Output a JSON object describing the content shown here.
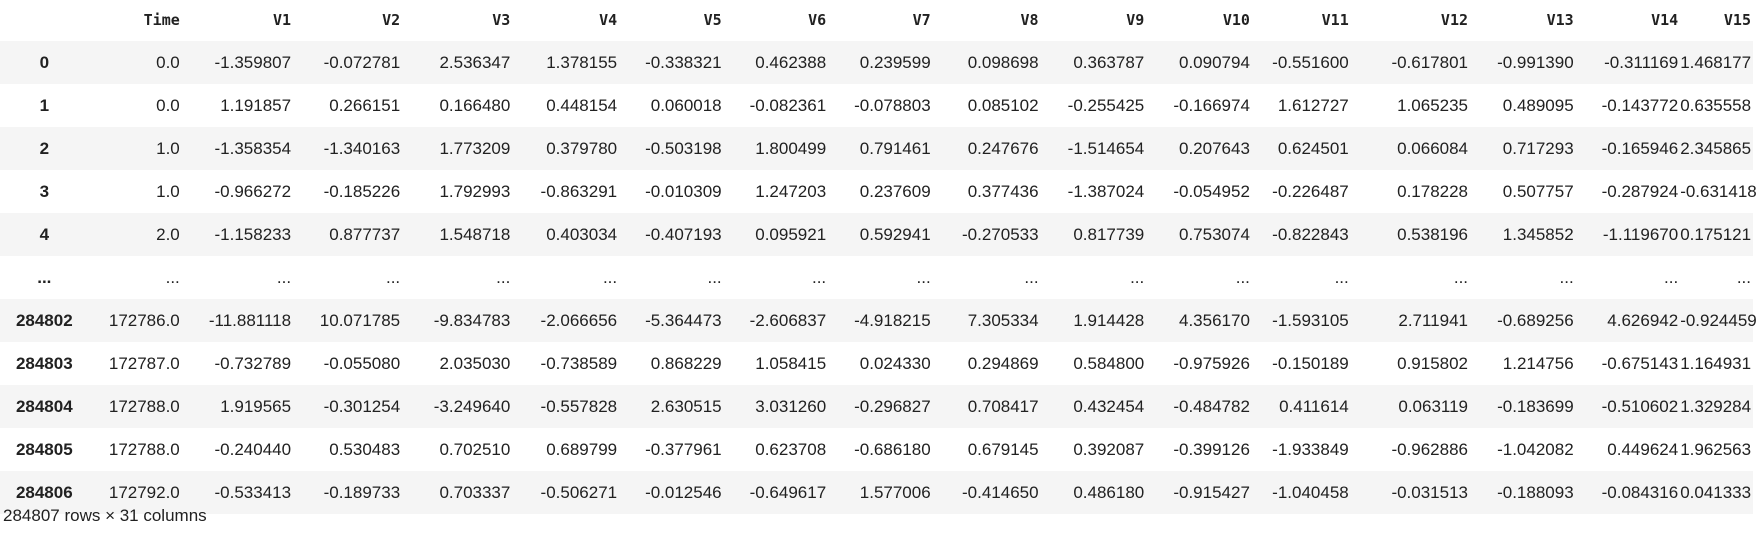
{
  "dataframe": {
    "columns": [
      "Time",
      "V1",
      "V2",
      "V3",
      "V4",
      "V5",
      "V6",
      "V7",
      "V8",
      "V9",
      "V10",
      "V11",
      "V12",
      "V13",
      "V14",
      "V15"
    ],
    "rows": [
      {
        "index": "0",
        "cells": [
          "0.0",
          "-1.359807",
          "-0.072781",
          "2.536347",
          "1.378155",
          "-0.338321",
          "0.462388",
          "0.239599",
          "0.098698",
          "0.363787",
          "0.090794",
          "-0.551600",
          "-0.617801",
          "-0.991390",
          "-0.311169",
          "1.468177"
        ]
      },
      {
        "index": "1",
        "cells": [
          "0.0",
          "1.191857",
          "0.266151",
          "0.166480",
          "0.448154",
          "0.060018",
          "-0.082361",
          "-0.078803",
          "0.085102",
          "-0.255425",
          "-0.166974",
          "1.612727",
          "1.065235",
          "0.489095",
          "-0.143772",
          "0.635558"
        ]
      },
      {
        "index": "2",
        "cells": [
          "1.0",
          "-1.358354",
          "-1.340163",
          "1.773209",
          "0.379780",
          "-0.503198",
          "1.800499",
          "0.791461",
          "0.247676",
          "-1.514654",
          "0.207643",
          "0.624501",
          "0.066084",
          "0.717293",
          "-0.165946",
          "2.345865"
        ]
      },
      {
        "index": "3",
        "cells": [
          "1.0",
          "-0.966272",
          "-0.185226",
          "1.792993",
          "-0.863291",
          "-0.010309",
          "1.247203",
          "0.237609",
          "0.377436",
          "-1.387024",
          "-0.054952",
          "-0.226487",
          "0.178228",
          "0.507757",
          "-0.287924",
          "-0.631418"
        ]
      },
      {
        "index": "4",
        "cells": [
          "2.0",
          "-1.158233",
          "0.877737",
          "1.548718",
          "0.403034",
          "-0.407193",
          "0.095921",
          "0.592941",
          "-0.270533",
          "0.817739",
          "0.753074",
          "-0.822843",
          "0.538196",
          "1.345852",
          "-1.119670",
          "0.175121"
        ]
      },
      {
        "index": "...",
        "cells": [
          "...",
          "...",
          "...",
          "...",
          "...",
          "...",
          "...",
          "...",
          "...",
          "...",
          "...",
          "...",
          "...",
          "...",
          "...",
          "..."
        ]
      },
      {
        "index": "284802",
        "cells": [
          "172786.0",
          "-11.881118",
          "10.071785",
          "-9.834783",
          "-2.066656",
          "-5.364473",
          "-2.606837",
          "-4.918215",
          "7.305334",
          "1.914428",
          "4.356170",
          "-1.593105",
          "2.711941",
          "-0.689256",
          "4.626942",
          "-0.924459"
        ]
      },
      {
        "index": "284803",
        "cells": [
          "172787.0",
          "-0.732789",
          "-0.055080",
          "2.035030",
          "-0.738589",
          "0.868229",
          "1.058415",
          "0.024330",
          "0.294869",
          "0.584800",
          "-0.975926",
          "-0.150189",
          "0.915802",
          "1.214756",
          "-0.675143",
          "1.164931"
        ]
      },
      {
        "index": "284804",
        "cells": [
          "172788.0",
          "1.919565",
          "-0.301254",
          "-3.249640",
          "-0.557828",
          "2.630515",
          "3.031260",
          "-0.296827",
          "0.708417",
          "0.432454",
          "-0.484782",
          "0.411614",
          "0.063119",
          "-0.183699",
          "-0.510602",
          "1.329284"
        ]
      },
      {
        "index": "284805",
        "cells": [
          "172788.0",
          "-0.240440",
          "0.530483",
          "0.702510",
          "0.689799",
          "-0.377961",
          "0.623708",
          "-0.686180",
          "0.679145",
          "0.392087",
          "-0.399126",
          "-1.933849",
          "-0.962886",
          "-1.042082",
          "0.449624",
          "1.962563"
        ]
      },
      {
        "index": "284806",
        "cells": [
          "172792.0",
          "-0.533413",
          "-0.189733",
          "0.703337",
          "-0.506271",
          "-0.012546",
          "-0.649617",
          "1.577006",
          "-0.414650",
          "0.486180",
          "-0.915427",
          "-1.040458",
          "-0.031513",
          "-0.188093",
          "-0.084316",
          "0.041333"
        ]
      }
    ],
    "shape_text": "284807 rows × 31 columns"
  }
}
